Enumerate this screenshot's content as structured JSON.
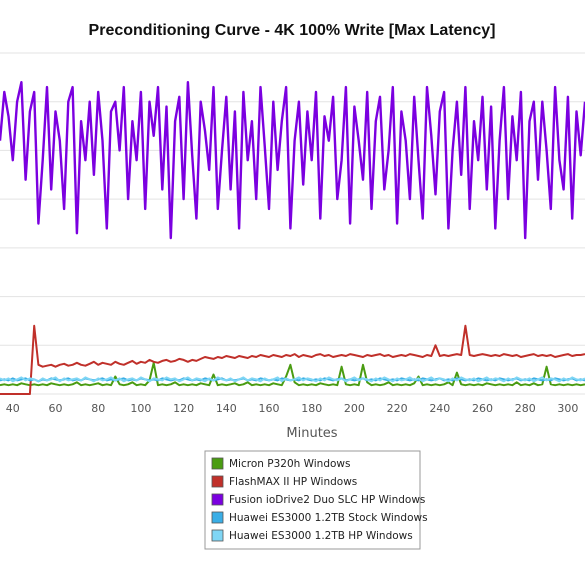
{
  "chart_data": {
    "type": "line",
    "title": "Preconditioning Curve - 4K 100% Write [Max Latency]",
    "xlabel": "Minutes",
    "ylabel": "",
    "xlim": [
      34,
      308
    ],
    "ylim": [
      0,
      350
    ],
    "x_ticks": [
      "40",
      "60",
      "80",
      "100",
      "120",
      "140",
      "160",
      "180",
      "200",
      "220",
      "240",
      "260",
      "280",
      "300"
    ],
    "grid": true,
    "legend_position": "bottom-center",
    "x": [
      34,
      36,
      38,
      40,
      42,
      44,
      46,
      48,
      50,
      52,
      54,
      56,
      58,
      60,
      62,
      64,
      66,
      68,
      70,
      72,
      74,
      76,
      78,
      80,
      82,
      84,
      86,
      88,
      90,
      92,
      94,
      96,
      98,
      100,
      102,
      104,
      106,
      108,
      110,
      112,
      114,
      116,
      118,
      120,
      122,
      124,
      126,
      128,
      130,
      132,
      134,
      136,
      138,
      140,
      142,
      144,
      146,
      148,
      150,
      152,
      154,
      156,
      158,
      160,
      162,
      164,
      166,
      168,
      170,
      172,
      174,
      176,
      178,
      180,
      182,
      184,
      186,
      188,
      190,
      192,
      194,
      196,
      198,
      200,
      202,
      204,
      206,
      208,
      210,
      212,
      214,
      216,
      218,
      220,
      222,
      224,
      226,
      228,
      230,
      232,
      234,
      236,
      238,
      240,
      242,
      244,
      246,
      248,
      250,
      252,
      254,
      256,
      258,
      260,
      262,
      264,
      266,
      268,
      270,
      272,
      274,
      276,
      278,
      280,
      282,
      284,
      286,
      288,
      290,
      292,
      294,
      296,
      298,
      300,
      302,
      304,
      306,
      308
    ],
    "series": [
      {
        "name": "Micron P320h Windows",
        "color": "#4a9c12",
        "values": [
          9,
          10,
          9,
          10,
          9,
          11,
          10,
          9,
          10,
          9,
          10,
          9,
          11,
          10,
          9,
          10,
          9,
          10,
          12,
          9,
          10,
          9,
          10,
          11,
          9,
          10,
          9,
          18,
          10,
          9,
          10,
          12,
          9,
          10,
          9,
          14,
          32,
          9,
          10,
          9,
          10,
          12,
          9,
          10,
          9,
          10,
          9,
          11,
          10,
          9,
          20,
          9,
          10,
          9,
          10,
          11,
          9,
          10,
          12,
          9,
          10,
          9,
          10,
          9,
          11,
          10,
          9,
          18,
          30,
          12,
          9,
          10,
          9,
          10,
          9,
          11,
          10,
          9,
          10,
          9,
          28,
          10,
          9,
          10,
          9,
          30,
          12,
          9,
          10,
          9,
          10,
          12,
          9,
          10,
          9,
          10,
          9,
          11,
          18,
          9,
          10,
          9,
          10,
          9,
          10,
          12,
          9,
          22,
          10,
          9,
          10,
          9,
          10,
          9,
          11,
          10,
          9,
          10,
          9,
          10,
          9,
          12,
          9,
          10,
          9,
          11,
          9,
          10,
          28,
          10,
          9,
          10,
          9,
          10,
          9,
          10,
          9,
          10
        ]
      },
      {
        "name": "FlashMAX II HP Windows",
        "color": "#c0302a",
        "values": [
          0,
          0,
          0,
          0,
          0,
          0,
          0,
          0,
          70,
          30,
          28,
          29,
          30,
          28,
          30,
          31,
          29,
          30,
          32,
          30,
          29,
          31,
          33,
          30,
          32,
          31,
          30,
          33,
          31,
          30,
          32,
          34,
          31,
          33,
          32,
          35,
          33,
          32,
          34,
          35,
          33,
          34,
          36,
          35,
          33,
          35,
          34,
          36,
          38,
          37,
          36,
          38,
          37,
          39,
          38,
          37,
          39,
          38,
          37,
          39,
          38,
          40,
          39,
          38,
          40,
          39,
          38,
          40,
          39,
          41,
          38,
          40,
          39,
          38,
          40,
          41,
          39,
          40,
          38,
          39,
          40,
          39,
          41,
          40,
          39,
          38,
          40,
          39,
          40,
          41,
          39,
          40,
          38,
          39,
          40,
          39,
          41,
          40,
          39,
          38,
          40,
          39,
          50,
          39,
          40,
          39,
          40,
          41,
          40,
          70,
          40,
          39,
          40,
          41,
          40,
          39,
          40,
          39,
          41,
          40,
          39,
          40,
          38,
          39,
          40,
          41,
          39,
          40,
          39,
          40,
          38,
          39,
          40,
          41,
          39,
          40,
          40,
          41
        ]
      },
      {
        "name": "Fusion ioDrive2 Duo SLC HP Windows",
        "color": "#7b00e0",
        "values": [
          260,
          310,
          285,
          240,
          300,
          320,
          220,
          290,
          310,
          175,
          240,
          315,
          210,
          290,
          260,
          190,
          300,
          315,
          165,
          280,
          240,
          300,
          225,
          310,
          260,
          170,
          290,
          300,
          250,
          315,
          200,
          280,
          240,
          310,
          190,
          300,
          265,
          315,
          210,
          295,
          160,
          280,
          305,
          200,
          320,
          245,
          180,
          300,
          270,
          230,
          315,
          190,
          250,
          305,
          210,
          290,
          170,
          310,
          240,
          280,
          200,
          315,
          255,
          190,
          300,
          230,
          280,
          315,
          170,
          260,
          300,
          215,
          290,
          240,
          310,
          180,
          285,
          260,
          305,
          200,
          240,
          315,
          175,
          295,
          260,
          220,
          310,
          190,
          280,
          305,
          210,
          250,
          315,
          175,
          290,
          260,
          200,
          305,
          240,
          180,
          315,
          265,
          205,
          290,
          310,
          170,
          250,
          300,
          225,
          315,
          190,
          280,
          240,
          305,
          210,
          295,
          170,
          260,
          315,
          200,
          285,
          240,
          310,
          160,
          280,
          300,
          220,
          300,
          250,
          190,
          315,
          240,
          210,
          305,
          180,
          290,
          245,
          300
        ]
      },
      {
        "name": "Huawei ES3000 1.2TB Stock Windows",
        "color": "#3aaee6",
        "values": [
          14,
          15,
          14,
          16,
          14,
          15,
          16,
          14,
          15,
          13,
          15,
          14,
          16,
          15,
          14,
          15,
          16,
          14,
          15,
          14,
          16,
          15,
          14,
          15,
          16,
          14,
          15,
          14,
          15,
          16,
          14,
          15,
          14,
          16,
          15,
          14,
          15,
          14,
          16,
          15,
          14,
          15,
          14,
          16,
          15,
          14,
          15,
          14,
          16,
          15,
          14,
          15,
          16,
          14,
          15,
          14,
          15,
          16,
          14,
          15,
          14,
          16,
          15,
          14,
          15,
          14,
          16,
          15,
          14,
          15,
          14,
          16,
          15,
          14,
          15,
          14,
          16,
          15,
          14,
          15,
          16,
          14,
          15,
          14,
          15,
          16,
          14,
          15,
          14,
          16,
          15,
          14,
          15,
          14,
          16,
          15,
          14,
          15,
          14,
          16,
          15,
          14,
          15,
          16,
          14,
          15,
          14,
          16,
          15,
          14,
          15,
          14,
          16,
          15,
          14,
          15,
          14,
          16,
          15,
          14,
          15,
          16,
          14,
          15,
          14,
          16,
          15,
          14,
          15,
          14,
          16,
          15,
          14,
          15,
          16,
          14,
          15,
          14
        ]
      },
      {
        "name": "Huawei ES3000 1.2TB HP Windows",
        "color": "#7fd6f5",
        "values": [
          16,
          14,
          16,
          13,
          15,
          17,
          14,
          16,
          15,
          13,
          16,
          14,
          15,
          17,
          13,
          16,
          14,
          15,
          16,
          14,
          17,
          15,
          13,
          16,
          14,
          15,
          17,
          14,
          16,
          13,
          15,
          16,
          14,
          17,
          15,
          13,
          16,
          15,
          14,
          17,
          15,
          16,
          13,
          15,
          17,
          14,
          16,
          15,
          13,
          16,
          14,
          17,
          15,
          14,
          16,
          13,
          15,
          17,
          14,
          16,
          15,
          13,
          16,
          14,
          15,
          17,
          13,
          16,
          14,
          15,
          17,
          14,
          16,
          15,
          13,
          16,
          14,
          17,
          15,
          14,
          16,
          13,
          15,
          17,
          14,
          16,
          15,
          13,
          16,
          14,
          17,
          15,
          13,
          16,
          14,
          15,
          17,
          14,
          16,
          13,
          15,
          17,
          14,
          16,
          15,
          13,
          16,
          14,
          17,
          15,
          14,
          16,
          13,
          15,
          17,
          14,
          16,
          15,
          13,
          16,
          14,
          17,
          15,
          14,
          16,
          13,
          15,
          17,
          14,
          16,
          15,
          13,
          16,
          14,
          17,
          15,
          14,
          16
        ]
      }
    ]
  }
}
